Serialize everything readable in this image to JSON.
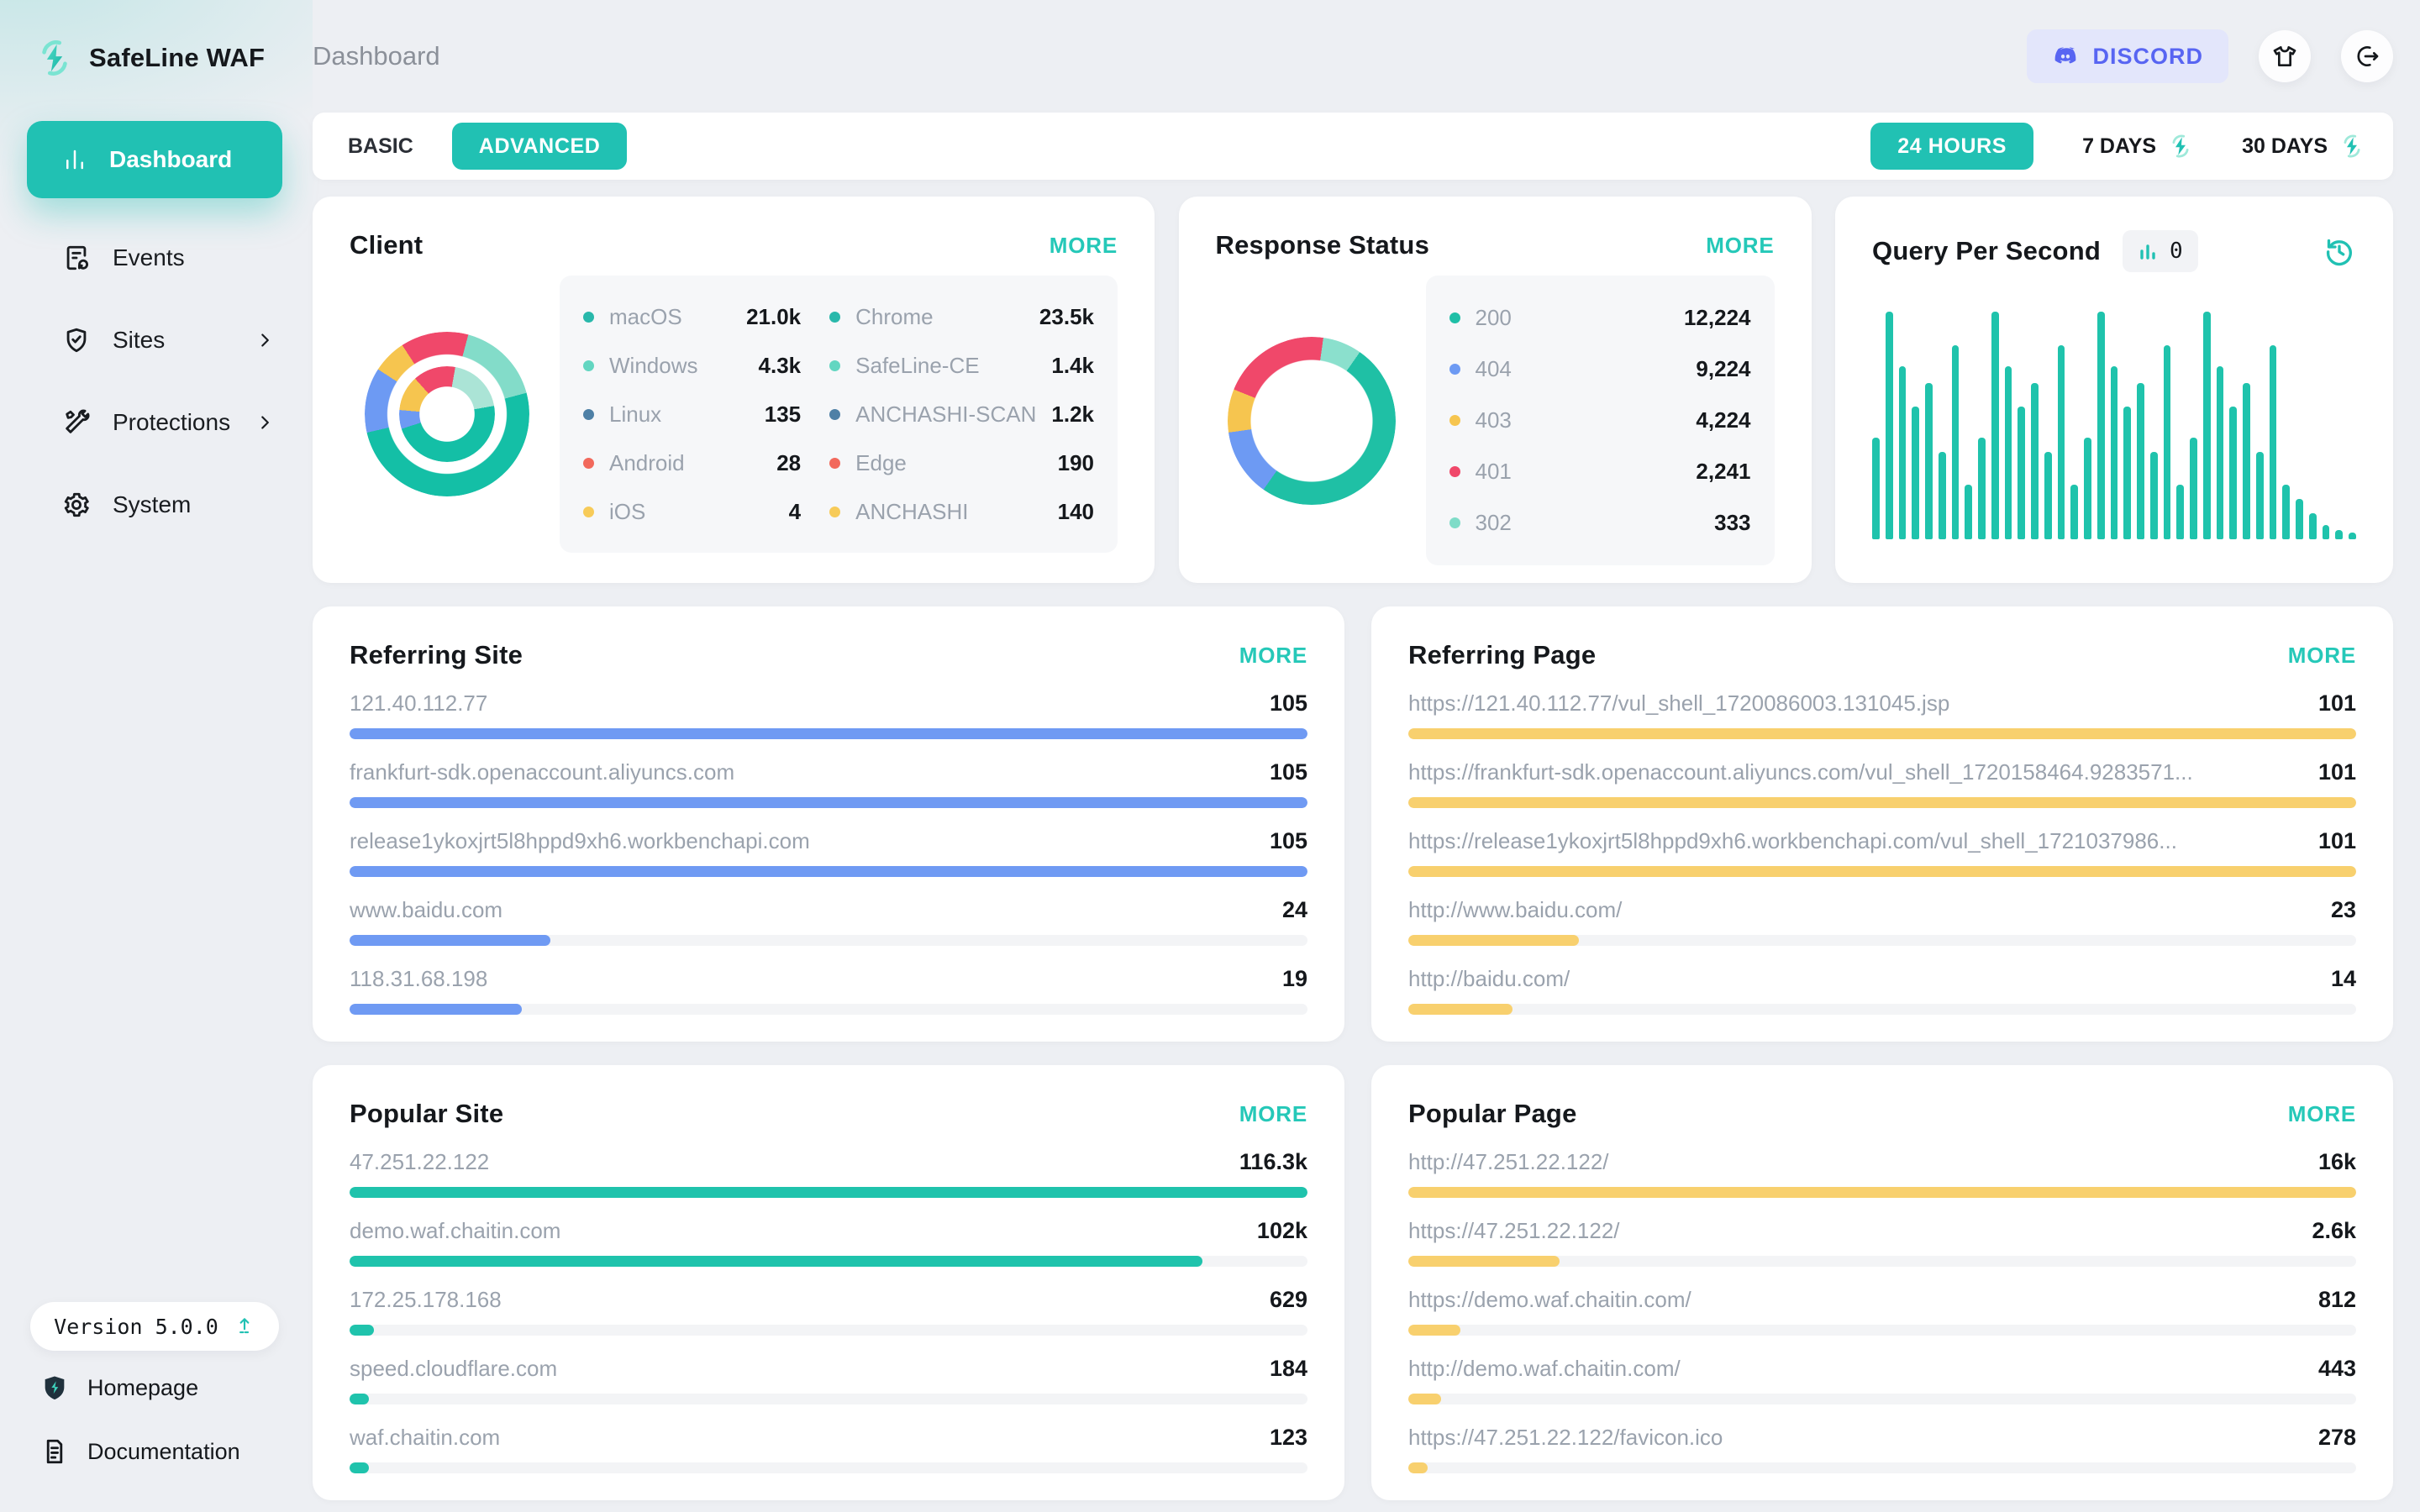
{
  "app": {
    "brand": "SafeLine WAF",
    "page_title": "Dashboard",
    "version_label": "Version 5.0.0"
  },
  "sidebar": {
    "items": [
      {
        "label": "Dashboard",
        "active": true
      },
      {
        "label": "Events"
      },
      {
        "label": "Sites",
        "has_submenu": true
      },
      {
        "label": "Protections",
        "has_submenu": true
      },
      {
        "label": "System"
      }
    ],
    "footer_links": [
      {
        "label": "Homepage"
      },
      {
        "label": "Documentation"
      }
    ]
  },
  "header": {
    "discord_label": "DISCORD"
  },
  "filter_bar": {
    "mode_tabs": [
      "BASIC",
      "ADVANCED"
    ],
    "active_mode": "ADVANCED",
    "range_tabs": [
      "24 HOURS",
      "7 DAYS",
      "30 DAYS"
    ],
    "active_range": "24 HOURS"
  },
  "colors": {
    "accent": "#21c1b3",
    "more_link": "#25c8b8",
    "bar_teal": "#1fc3ac",
    "bar_blue": "#6f9af3",
    "bar_yellow": "#f8d06e",
    "donut_teal": "#14bfa6",
    "donut_mint": "#83dcc9",
    "donut_mint_light": "#abe4d6",
    "donut_blue": "#6d9af3",
    "donut_yellow": "#f6c54f",
    "donut_pink": "#f0486a",
    "dot_teal": "#29b8ab",
    "dot_mint": "#63d6c1",
    "dot_steel": "#4e80a6",
    "dot_coral": "#f2695c",
    "dot_yellow": "#f7cb59",
    "discord": "#5865f2"
  },
  "cards": {
    "client": {
      "title": "Client",
      "more": "MORE",
      "os": [
        {
          "label": "macOS",
          "value": "21.0k",
          "color": "#29b8ab"
        },
        {
          "label": "Windows",
          "value": "4.3k",
          "color": "#63d6c1"
        },
        {
          "label": "Linux",
          "value": "135",
          "color": "#4e80a6"
        },
        {
          "label": "Android",
          "value": "28",
          "color": "#f2695c"
        },
        {
          "label": "iOS",
          "value": "4",
          "color": "#f7cb59"
        }
      ],
      "browser": [
        {
          "label": "Chrome",
          "value": "23.5k",
          "color": "#29b8ab"
        },
        {
          "label": "SafeLine-CE",
          "value": "1.4k",
          "color": "#63d6c1"
        },
        {
          "label": "ANCHASHI-SCAN",
          "value": "1.2k",
          "color": "#4e80a6"
        },
        {
          "label": "Edge",
          "value": "190",
          "color": "#f2695c"
        },
        {
          "label": "ANCHASHI",
          "value": "140",
          "color": "#f7cb59"
        }
      ],
      "donut_outer": [
        [
          "#f0486a",
          0,
          15
        ],
        [
          "#83dcc9",
          15,
          75
        ],
        [
          "#14bfa6",
          75,
          257
        ],
        [
          "#6d9af3",
          257,
          303
        ],
        [
          "#f6c54f",
          303,
          327
        ],
        [
          "#f0486a",
          327,
          360
        ]
      ],
      "donut_inner": [
        [
          "#f0486a",
          0,
          10
        ],
        [
          "#abe4d6",
          10,
          80
        ],
        [
          "#14bfa6",
          80,
          252
        ],
        [
          "#6d9af3",
          252,
          275
        ],
        [
          "#f6c54f",
          275,
          318
        ],
        [
          "#f0486a",
          318,
          360
        ]
      ]
    },
    "response_status": {
      "title": "Response Status",
      "more": "MORE",
      "items": [
        {
          "label": "200",
          "value": "12,224",
          "color": "#1fbfa7"
        },
        {
          "label": "404",
          "value": "9,224",
          "color": "#6d9af3"
        },
        {
          "label": "403",
          "value": "4,224",
          "color": "#f6c54f"
        },
        {
          "label": "401",
          "value": "2,241",
          "color": "#f0486a"
        },
        {
          "label": "302",
          "value": "333",
          "color": "#7fdcc8"
        }
      ],
      "donut": [
        [
          "#f0486a",
          0,
          8
        ],
        [
          "#8be0cd",
          8,
          35
        ],
        [
          "#1fc0a5",
          35,
          215
        ],
        [
          "#6d9af3",
          215,
          262
        ],
        [
          "#f6c54f",
          262,
          292
        ],
        [
          "#f0486a",
          292,
          360
        ]
      ]
    },
    "qps": {
      "title": "Query Per Second",
      "counter": "0",
      "bars": [
        43,
        96,
        73,
        56,
        66,
        37,
        82,
        23,
        43,
        96,
        73,
        56,
        66,
        37,
        82,
        23,
        43,
        96,
        73,
        56,
        66,
        37,
        82,
        23,
        43,
        96,
        73,
        56,
        66,
        37,
        82,
        23,
        17,
        11,
        6,
        4,
        3
      ]
    },
    "referring_site": {
      "title": "Referring Site",
      "more": "MORE",
      "rows": [
        {
          "label": "121.40.112.77",
          "value": "105",
          "pct": 100
        },
        {
          "label": "frankfurt-sdk.openaccount.aliyuncs.com",
          "value": "105",
          "pct": 100
        },
        {
          "label": "release1ykoxjrt5l8hppd9xh6.workbenchapi.com",
          "value": "105",
          "pct": 100
        },
        {
          "label": "www.baidu.com",
          "value": "24",
          "pct": 21
        },
        {
          "label": "118.31.68.198",
          "value": "19",
          "pct": 18
        }
      ]
    },
    "referring_page": {
      "title": "Referring Page",
      "more": "MORE",
      "rows": [
        {
          "label": "https://121.40.112.77/vul_shell_1720086003.131045.jsp",
          "value": "101",
          "pct": 100
        },
        {
          "label": "https://frankfurt-sdk.openaccount.aliyuncs.com/vul_shell_1720158464.9283571...",
          "value": "101",
          "pct": 100
        },
        {
          "label": "https://release1ykoxjrt5l8hppd9xh6.workbenchapi.com/vul_shell_1721037986...",
          "value": "101",
          "pct": 100
        },
        {
          "label": "http://www.baidu.com/",
          "value": "23",
          "pct": 18
        },
        {
          "label": "http://baidu.com/",
          "value": "14",
          "pct": 11
        }
      ]
    },
    "popular_site": {
      "title": "Popular Site",
      "more": "MORE",
      "rows": [
        {
          "label": "47.251.22.122",
          "value": "116.3k",
          "pct": 100
        },
        {
          "label": "demo.waf.chaitin.com",
          "value": "102k",
          "pct": 89
        },
        {
          "label": "172.25.178.168",
          "value": "629",
          "pct": 2.5
        },
        {
          "label": "speed.cloudflare.com",
          "value": "184",
          "pct": 2
        },
        {
          "label": "waf.chaitin.com",
          "value": "123",
          "pct": 2
        }
      ]
    },
    "popular_page": {
      "title": "Popular Page",
      "more": "MORE",
      "rows": [
        {
          "label": "http://47.251.22.122/",
          "value": "16k",
          "pct": 100
        },
        {
          "label": "https://47.251.22.122/",
          "value": "2.6k",
          "pct": 16
        },
        {
          "label": "https://demo.waf.chaitin.com/",
          "value": "812",
          "pct": 5.5
        },
        {
          "label": "http://demo.waf.chaitin.com/",
          "value": "443",
          "pct": 3.5
        },
        {
          "label": "https://47.251.22.122/favicon.ico",
          "value": "278",
          "pct": 2
        }
      ]
    }
  }
}
